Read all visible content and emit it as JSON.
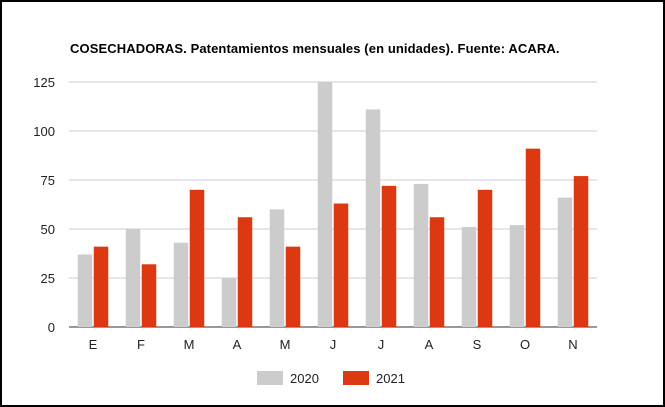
{
  "chart_data": {
    "type": "bar",
    "title": "COSECHADORAS. Patentamientos mensuales (en unidades). Fuente: ACARA.",
    "xlabel": "",
    "ylabel": "",
    "categories": [
      "E",
      "F",
      "M",
      "A",
      "M",
      "J",
      "J",
      "A",
      "S",
      "O",
      "N"
    ],
    "series": [
      {
        "name": "2020",
        "color": "#cccccc",
        "values": [
          37,
          50,
          43,
          25,
          60,
          125,
          111,
          73,
          51,
          52,
          66
        ]
      },
      {
        "name": "2021",
        "color": "#dc3912",
        "values": [
          41,
          32,
          70,
          56,
          41,
          63,
          72,
          56,
          70,
          91,
          77
        ]
      }
    ],
    "ylim": [
      0,
      125
    ],
    "yticks": [
      0,
      25,
      50,
      75,
      100,
      125
    ],
    "grid": true,
    "legend_position": "bottom"
  }
}
